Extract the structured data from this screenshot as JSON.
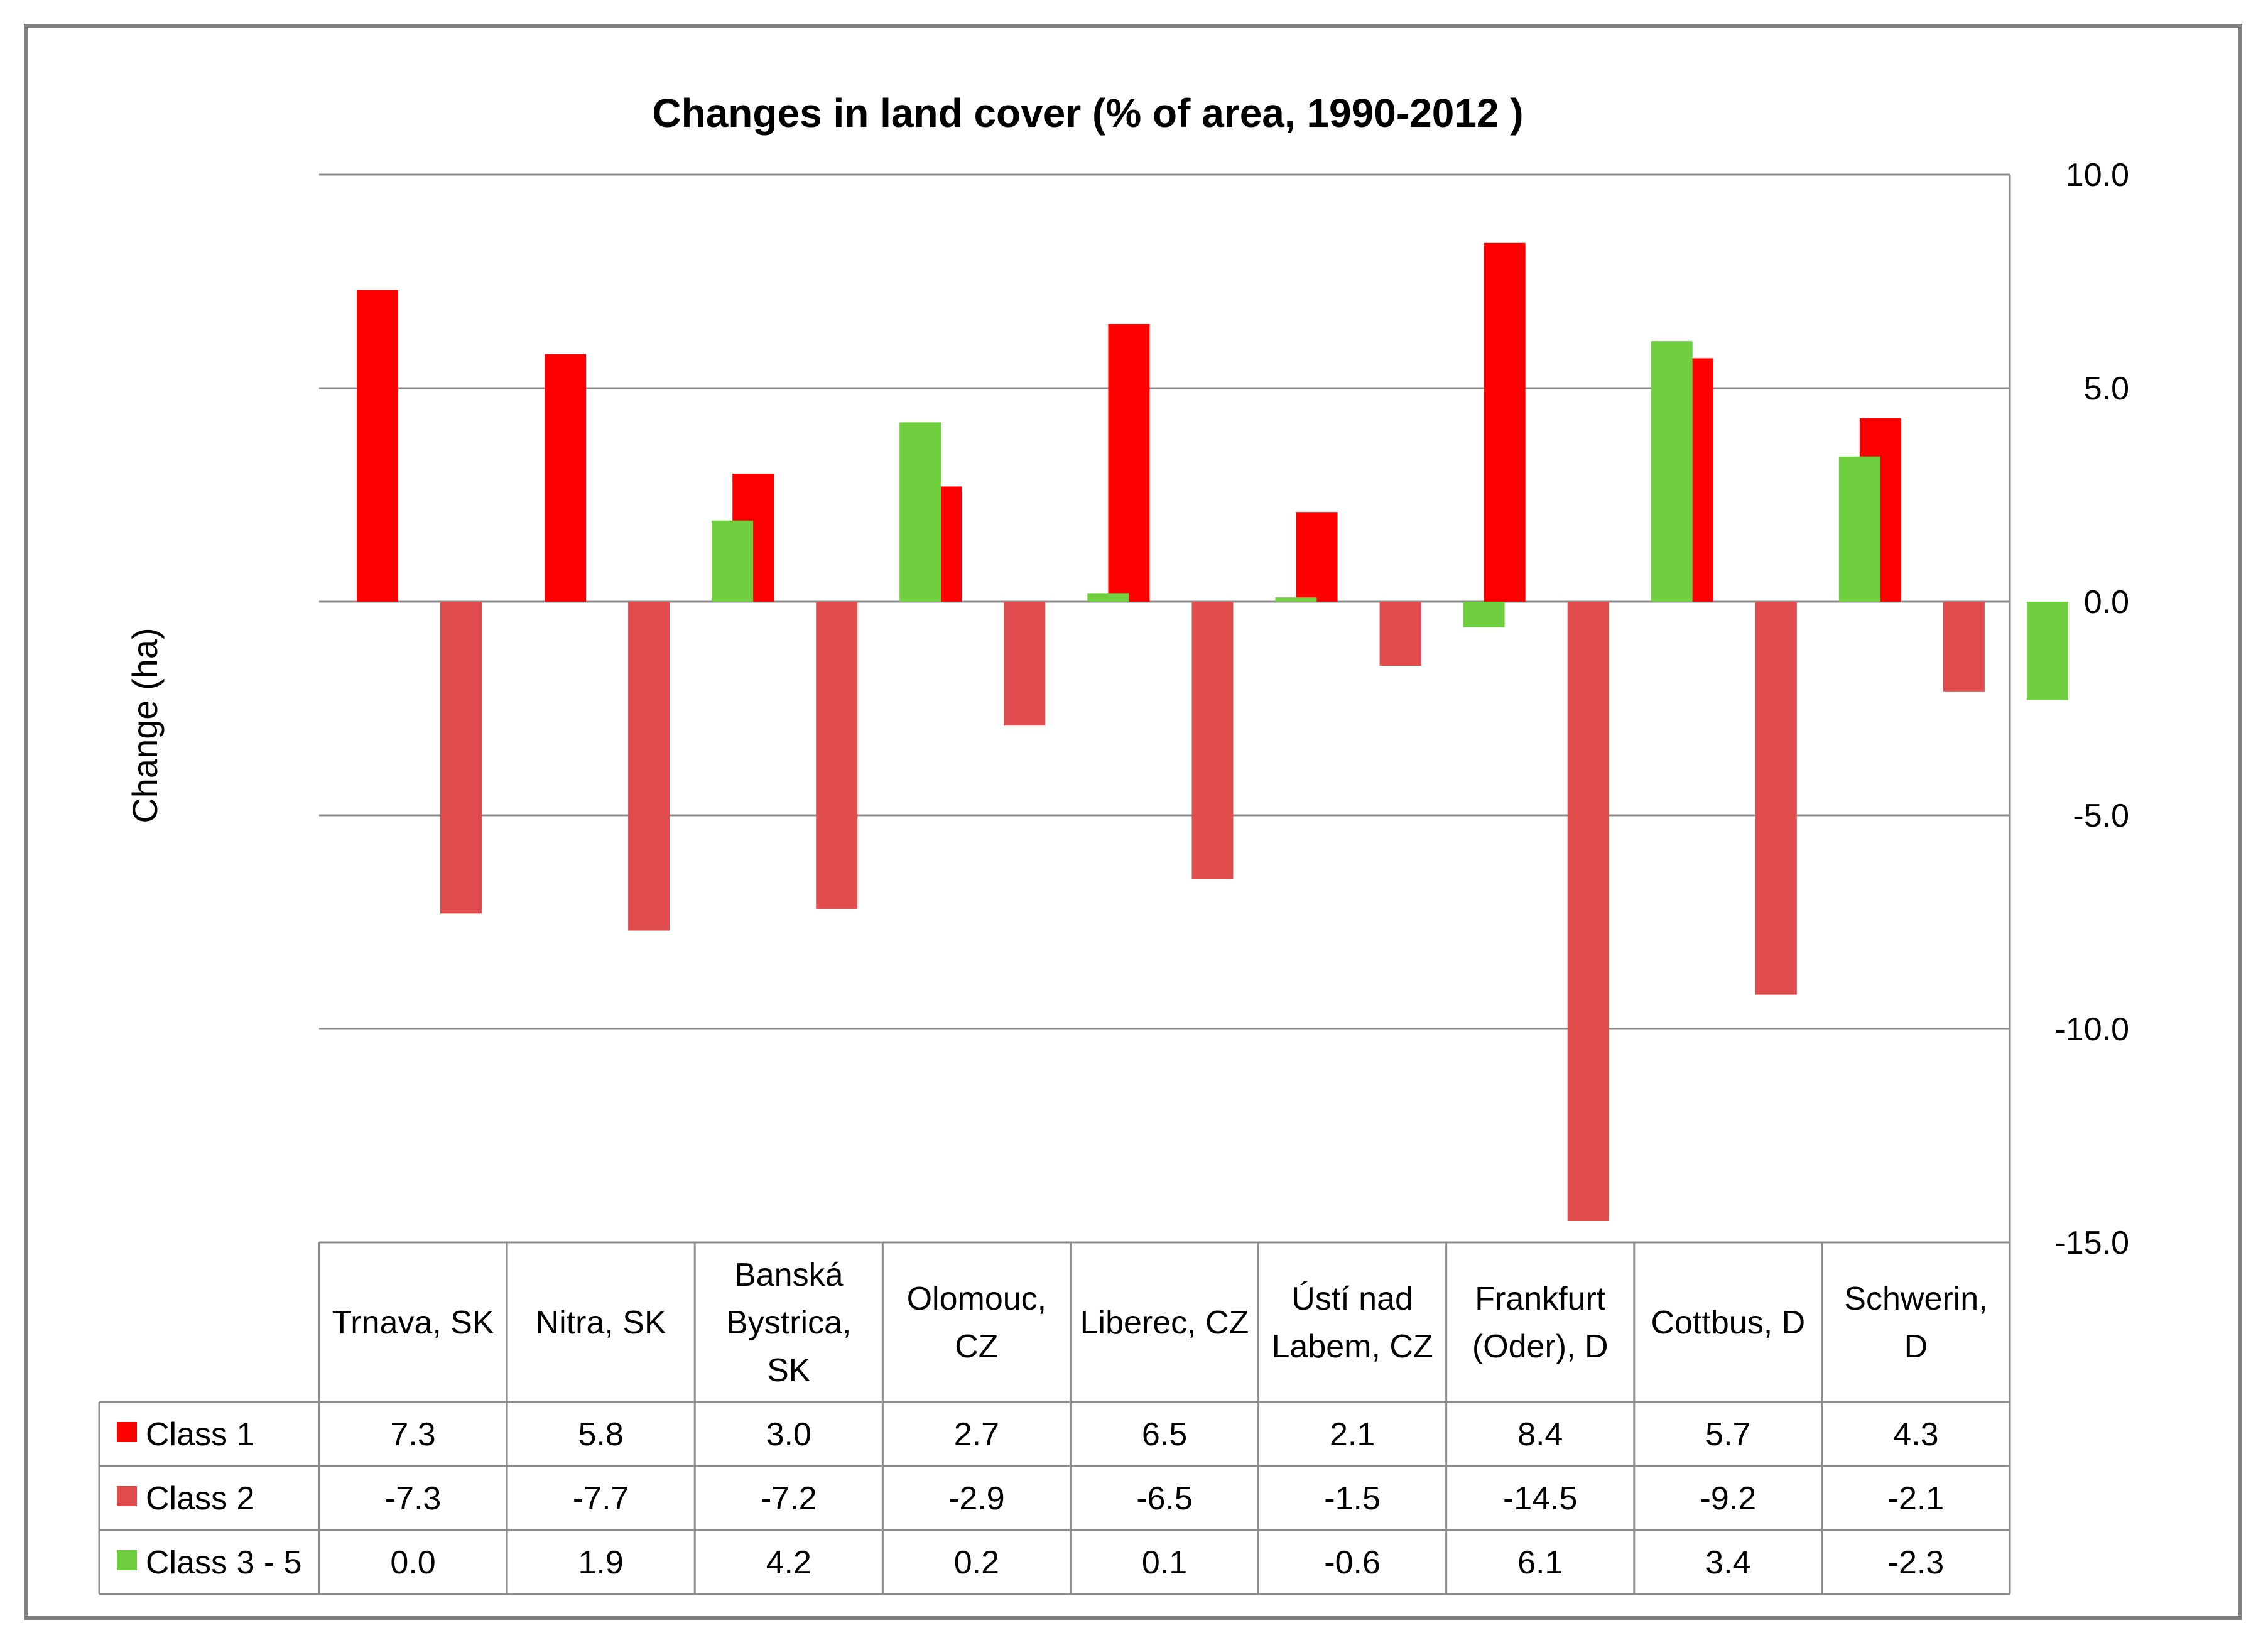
{
  "chart_data": {
    "type": "bar",
    "title": "Changes in land cover (% of area, 1990-2012 )",
    "ylabel": "Change (ha)",
    "xlabel": "",
    "ylim": [
      -15.0,
      10.0
    ],
    "yticks": [
      "10.0",
      "5.0",
      "0.0",
      "-5.0",
      "-10.0",
      "-15.0"
    ],
    "tick_values": [
      10,
      5,
      0,
      -5,
      -10,
      -15
    ],
    "grid": true,
    "legend_placement": "data-table-rows",
    "categories": [
      [
        "Trnava, SK"
      ],
      [
        "Nitra, SK"
      ],
      [
        "Banská",
        "Bystrica,",
        "SK"
      ],
      [
        "Olomouc,",
        "CZ"
      ],
      [
        "Liberec, CZ"
      ],
      [
        "Ústí nad",
        "Labem, CZ"
      ],
      [
        "Frankfurt",
        "(Oder), D"
      ],
      [
        "Cottbus, D"
      ],
      [
        "Schwerin,",
        "D"
      ]
    ],
    "series": [
      {
        "name": "Class 1",
        "color": "#ff0000",
        "values": [
          7.3,
          5.8,
          3.0,
          2.7,
          6.5,
          2.1,
          8.4,
          5.7,
          4.3
        ],
        "labels": [
          "7.3",
          "5.8",
          "3.0",
          "2.7",
          "6.5",
          "2.1",
          "8.4",
          "5.7",
          "4.3"
        ]
      },
      {
        "name": "Class 2",
        "color": "#e04c4c",
        "values": [
          -7.3,
          -7.7,
          -7.2,
          -2.9,
          -6.5,
          -1.5,
          -14.5,
          -9.2,
          -2.1
        ],
        "labels": [
          "-7.3",
          "-7.7",
          "-7.2",
          "-2.9",
          "-6.5",
          "-1.5",
          "-14.5",
          "-9.2",
          "-2.1"
        ]
      },
      {
        "name": "Class 3 - 5",
        "color": "#6fcf3f",
        "values": [
          0.0,
          1.9,
          4.2,
          0.2,
          0.1,
          -0.6,
          6.1,
          3.4,
          -2.3
        ],
        "labels": [
          "0.0",
          "1.9",
          "4.2",
          "0.2",
          "0.1",
          "-0.6",
          "6.1",
          "3.4",
          "-2.3"
        ]
      }
    ]
  }
}
